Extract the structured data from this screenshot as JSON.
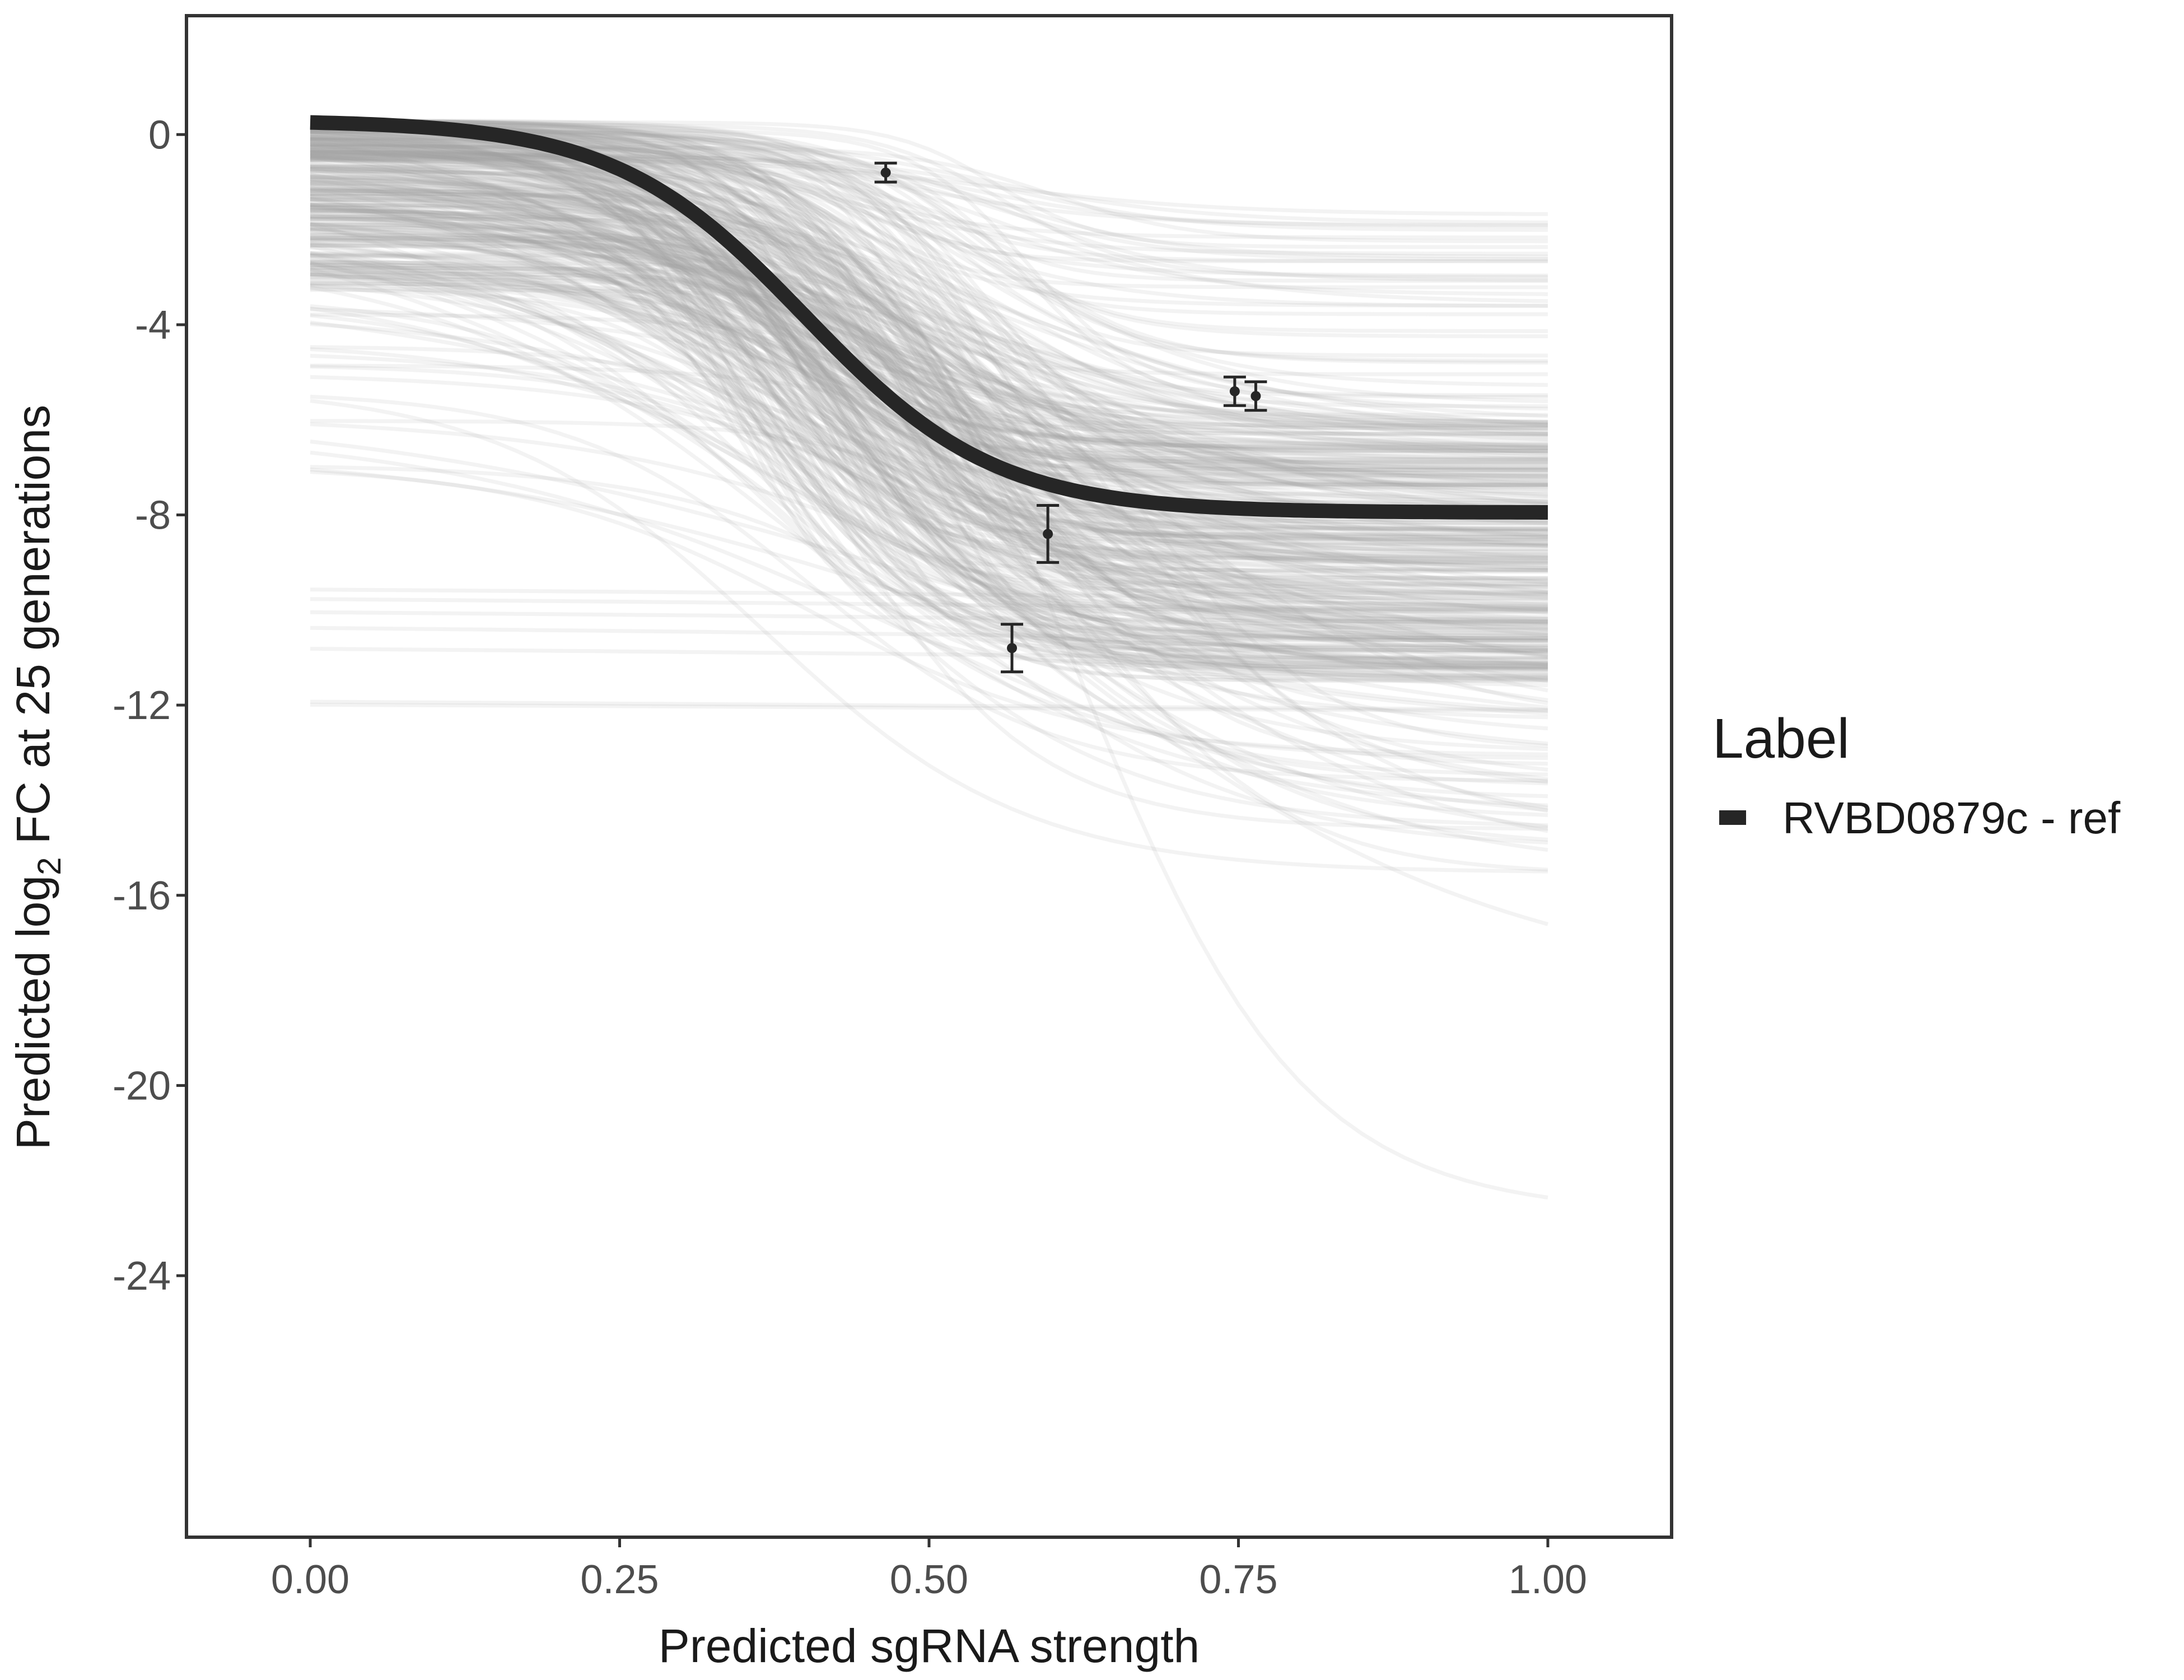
{
  "chart_data": {
    "type": "line",
    "xlabel": "Predicted sgRNA strength",
    "ylabel_prefix": "Predicted  log",
    "ylabel_subscript": "2",
    "ylabel_suffix": " FC at 25 generations",
    "xlim": [
      -0.1,
      1.1
    ],
    "ylim": [
      -29.5,
      2.5
    ],
    "x_ticks": [
      0.0,
      0.25,
      0.5,
      0.75,
      1.0
    ],
    "x_tick_labels": [
      "0.00",
      "0.25",
      "0.50",
      "0.75",
      "1.00"
    ],
    "y_ticks": [
      0,
      -4,
      -8,
      -12,
      -16,
      -20,
      -24
    ],
    "y_tick_labels": [
      "0",
      "-4",
      "-8",
      "-12",
      "-16",
      "-20",
      "-24"
    ],
    "grid": false,
    "legend": {
      "title": "Label",
      "position": "right",
      "entries": [
        {
          "label": "RVBD0879c - ref",
          "color": "#262626"
        }
      ]
    },
    "reference_curve": {
      "name": "RVBD0879c - ref",
      "model": "logistic",
      "x_range": [
        0,
        1
      ],
      "top": 0.3,
      "bottom": -7.95,
      "midpoint": 0.4,
      "steepness": 13,
      "color": "#262626"
    },
    "posterior_curves": {
      "count": 400,
      "color": "#a0a0a0",
      "x_range": [
        0,
        1
      ],
      "end_value_range": [
        -22.7,
        -1.6
      ]
    },
    "observed_points": [
      {
        "x": 0.465,
        "y": -0.8,
        "ymin": -1.0,
        "ymax": -0.6
      },
      {
        "x": 0.567,
        "y": -10.8,
        "ymin": -11.3,
        "ymax": -10.3
      },
      {
        "x": 0.596,
        "y": -8.4,
        "ymin": -9.0,
        "ymax": -7.8
      },
      {
        "x": 0.747,
        "y": -5.4,
        "ymin": -5.7,
        "ymax": -5.1
      },
      {
        "x": 0.764,
        "y": -5.5,
        "ymin": -5.8,
        "ymax": -5.2
      }
    ],
    "colors": {
      "panel_border": "#333333",
      "axis_text": "#4d4d4d",
      "title_text": "#1a1a1a",
      "points": "#262626"
    }
  }
}
